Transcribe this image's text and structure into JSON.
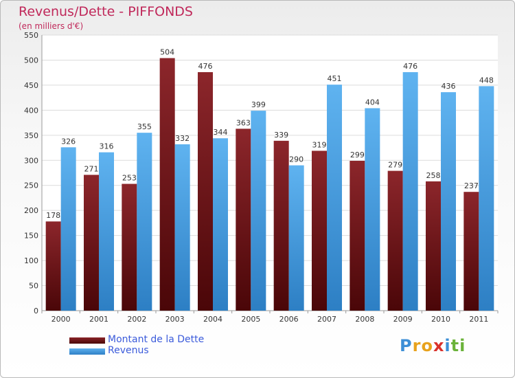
{
  "chart_data": {
    "type": "bar",
    "title": "Revenus/Dette - PIFFONDS",
    "subtitle": "(en milliers d'€)",
    "categories": [
      "2000",
      "2001",
      "2002",
      "2003",
      "2004",
      "2005",
      "2006",
      "2007",
      "2008",
      "2009",
      "2010",
      "2011"
    ],
    "series": [
      {
        "name": "Montant de la Dette",
        "color": "#7a1a1f",
        "values": [
          178,
          271,
          253,
          504,
          476,
          363,
          339,
          319,
          299,
          279,
          258,
          237
        ]
      },
      {
        "name": "Revenus",
        "color": "#4da3e6",
        "values": [
          326,
          316,
          355,
          332,
          344,
          399,
          290,
          451,
          404,
          476,
          436,
          448
        ]
      }
    ],
    "ylim": [
      0,
      550
    ],
    "yticks": [
      0,
      50,
      100,
      150,
      200,
      250,
      300,
      350,
      400,
      450,
      500,
      550
    ],
    "grid": true,
    "legend": "bottom-left"
  },
  "brand": {
    "letters": [
      {
        "ch": "P",
        "color": "#3d8fd6"
      },
      {
        "ch": "r",
        "color": "#e8a21c"
      },
      {
        "ch": "o",
        "color": "#e8a21c"
      },
      {
        "ch": "x",
        "color": "#d9312b"
      },
      {
        "ch": "i",
        "color": "#3d8fd6"
      },
      {
        "ch": "t",
        "color": "#6bb33a"
      },
      {
        "ch": "i",
        "color": "#6bb33a"
      }
    ]
  }
}
